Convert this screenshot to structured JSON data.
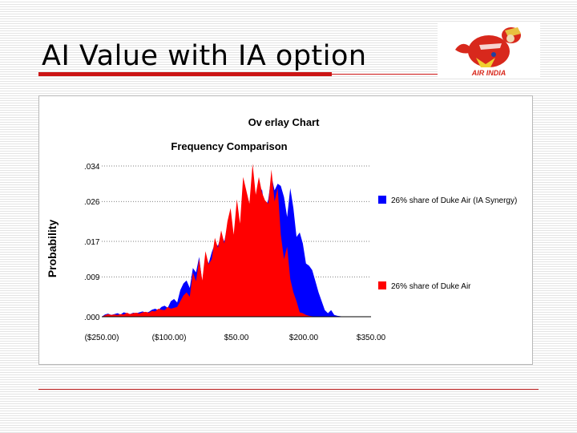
{
  "slide": {
    "title": "AI Value with IA option"
  },
  "logo": {
    "icon": "air-india-maharajah-logo-icon"
  },
  "colors": {
    "accent_red": "#cc1414",
    "series_blue": "#0000ff",
    "series_red": "#ff0000"
  },
  "chart_data": {
    "type": "area",
    "title": "Ov erlay Chart",
    "subtitle": "Frequency Comparison",
    "ylabel": "Probability",
    "xlabel": "",
    "ylim": [
      0,
      0.034
    ],
    "xlim": [
      -250,
      350
    ],
    "y_ticks": [
      {
        "value": 0.0,
        "label": ".000"
      },
      {
        "value": 0.009,
        "label": ".009"
      },
      {
        "value": 0.017,
        "label": ".017"
      },
      {
        "value": 0.026,
        "label": ".026"
      },
      {
        "value": 0.034,
        "label": ".034"
      }
    ],
    "x_ticks": [
      {
        "value": -250,
        "label": "($250.00)"
      },
      {
        "value": -100,
        "label": "($100.00)"
      },
      {
        "value": 50,
        "label": "$50.00"
      },
      {
        "value": 200,
        "label": "$200.00"
      },
      {
        "value": 350,
        "label": "$350.00"
      }
    ],
    "grid": "horizontal-dotted",
    "legend_position": "right",
    "series": [
      {
        "name": "26% share of Duke Air (IA Synergy)",
        "color": "#0000ff",
        "x": [
          -250,
          -243,
          -236,
          -229,
          -222,
          -215,
          -208,
          -201,
          -194,
          -187,
          -180,
          -173,
          -166,
          -159,
          -152,
          -145,
          -138,
          -131,
          -124,
          -117,
          -110,
          -103,
          -96,
          -89,
          -82,
          -75,
          -68,
          -61,
          -54,
          -47,
          -40,
          -33,
          -26,
          -19,
          -12,
          -5,
          2,
          9,
          16,
          23,
          30,
          37,
          44,
          51,
          58,
          65,
          72,
          79,
          86,
          93,
          100,
          107,
          114,
          121,
          128,
          135,
          142,
          149,
          156,
          163,
          170,
          177,
          184,
          191,
          198,
          205,
          212,
          219,
          226,
          233,
          240,
          247,
          254,
          261,
          268,
          275,
          282,
          289,
          296
        ],
        "y": [
          0.0,
          0.0005,
          0.0007,
          0.0004,
          0.0006,
          0.0008,
          0.0005,
          0.001,
          0.0008,
          0.0006,
          0.0009,
          0.0008,
          0.001,
          0.0012,
          0.0009,
          0.0011,
          0.0016,
          0.0018,
          0.0015,
          0.0022,
          0.0025,
          0.002,
          0.0035,
          0.004,
          0.0032,
          0.006,
          0.0075,
          0.0082,
          0.0065,
          0.011,
          0.01,
          0.0135,
          0.0078,
          0.014,
          0.012,
          0.0145,
          0.0165,
          0.016,
          0.0185,
          0.017,
          0.0205,
          0.023,
          0.0175,
          0.0235,
          0.02,
          0.0245,
          0.026,
          0.024,
          0.0315,
          0.023,
          0.0265,
          0.0288,
          0.024,
          0.0265,
          0.0318,
          0.0285,
          0.03,
          0.0295,
          0.027,
          0.0225,
          0.029,
          0.0245,
          0.018,
          0.019,
          0.0165,
          0.012,
          0.0115,
          0.0105,
          0.008,
          0.0055,
          0.0035,
          0.0015,
          0.0008,
          0.0015,
          0.0004,
          0.0002,
          0.0001,
          0.0,
          0.0
        ]
      },
      {
        "name": "26% share of Duke Air",
        "color": "#ff0000",
        "x": [
          -250,
          -243,
          -236,
          -229,
          -222,
          -215,
          -208,
          -201,
          -194,
          -187,
          -180,
          -173,
          -166,
          -159,
          -152,
          -145,
          -138,
          -131,
          -124,
          -117,
          -110,
          -103,
          -96,
          -89,
          -82,
          -75,
          -68,
          -61,
          -54,
          -47,
          -40,
          -33,
          -26,
          -19,
          -12,
          -5,
          2,
          9,
          16,
          23,
          30,
          37,
          44,
          51,
          58,
          65,
          72,
          79,
          86,
          93,
          100,
          107,
          114,
          121,
          128,
          135,
          142,
          149,
          156,
          163,
          170,
          177,
          184,
          191,
          198,
          205,
          212,
          219,
          226,
          233,
          240,
          247,
          254,
          261,
          268,
          275,
          282,
          289,
          296
        ],
        "y": [
          0.0,
          0.0003,
          0.0006,
          0.0004,
          0.0005,
          0.0004,
          0.0006,
          0.0005,
          0.0009,
          0.0006,
          0.0008,
          0.0009,
          0.0007,
          0.001,
          0.0011,
          0.0009,
          0.0013,
          0.0012,
          0.0018,
          0.0016,
          0.0015,
          0.0022,
          0.0018,
          0.002,
          0.0022,
          0.0035,
          0.0048,
          0.0055,
          0.0045,
          0.01,
          0.008,
          0.013,
          0.0082,
          0.0148,
          0.0118,
          0.013,
          0.0178,
          0.0155,
          0.0195,
          0.0165,
          0.0215,
          0.0245,
          0.0185,
          0.0265,
          0.021,
          0.0315,
          0.0285,
          0.0255,
          0.0345,
          0.0275,
          0.0315,
          0.028,
          0.0262,
          0.0255,
          0.0332,
          0.026,
          0.029,
          0.0185,
          0.013,
          0.0158,
          0.0085,
          0.0055,
          0.0035,
          0.001,
          0.0008,
          0.0004,
          0.0002,
          0.0001,
          0.0,
          0.0,
          0.0,
          0.0,
          0.0,
          0.0,
          0.0,
          0.0,
          0.0,
          0.0,
          0.0
        ]
      }
    ]
  }
}
